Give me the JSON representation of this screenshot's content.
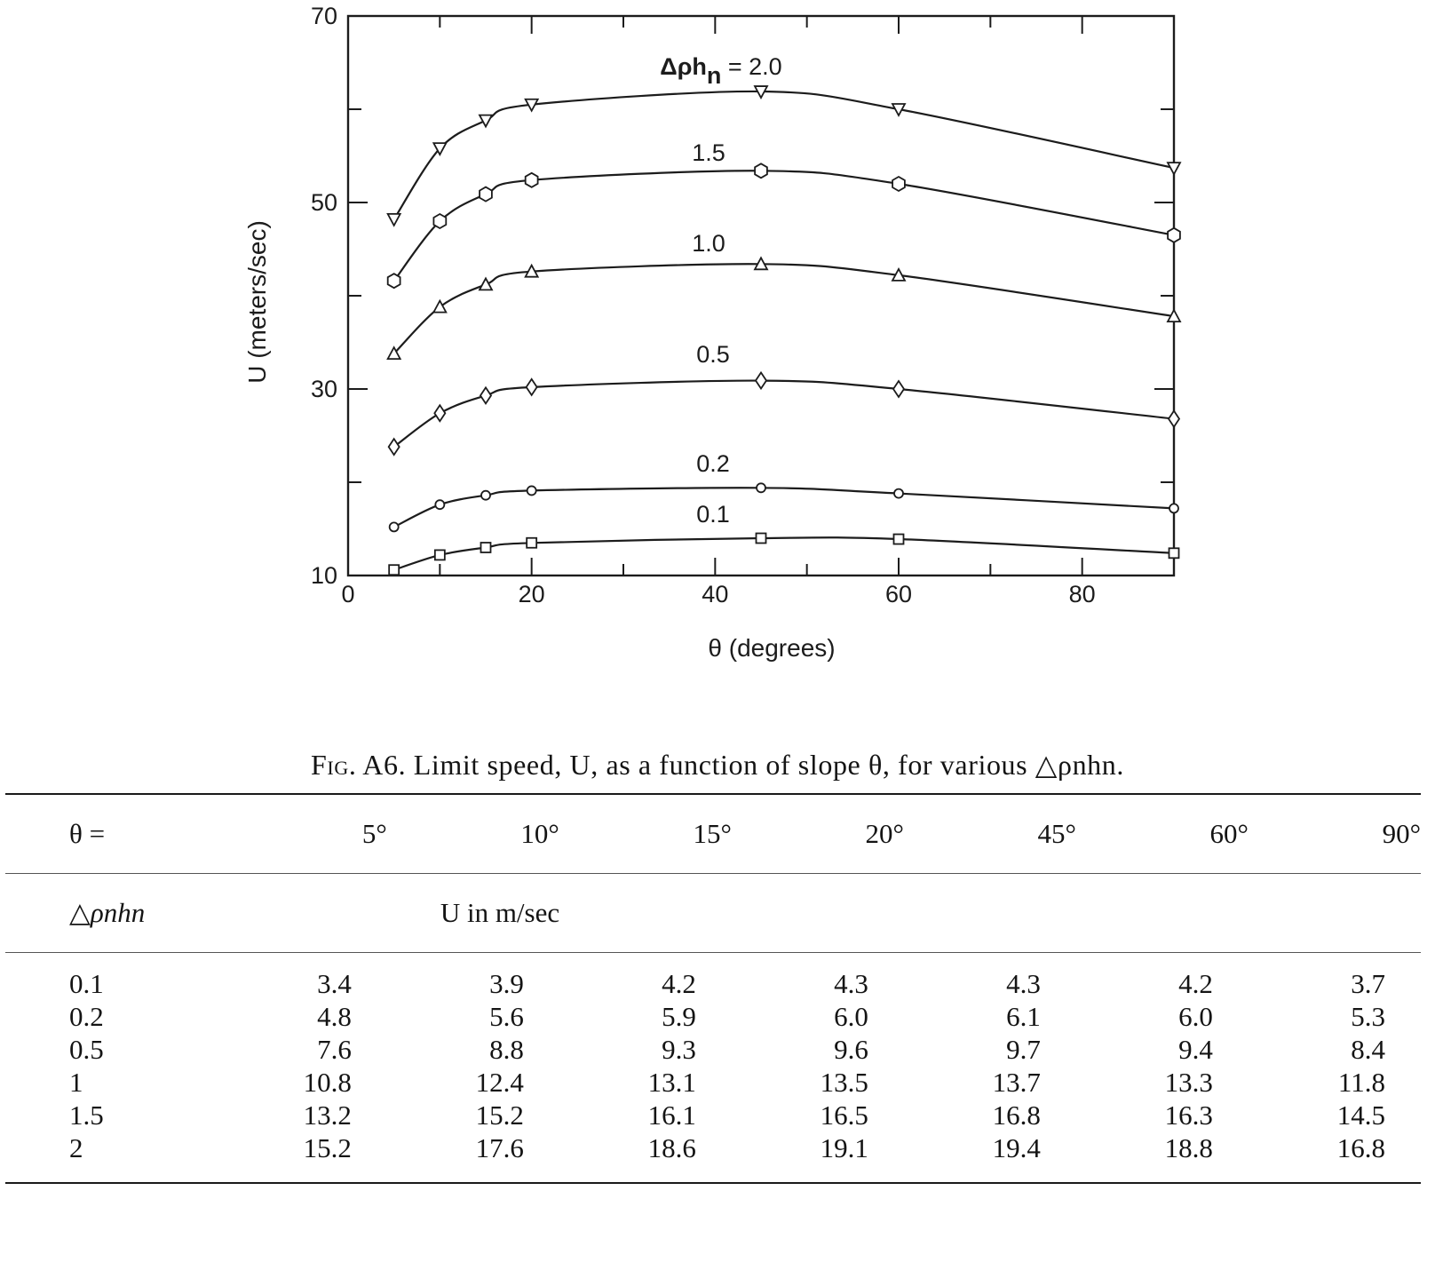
{
  "chart_data": {
    "type": "line",
    "xlabel": "θ (degrees)",
    "ylabel": "U (meters/sec)",
    "xlim": [
      0,
      90
    ],
    "ylim": [
      10,
      70
    ],
    "x_ticks": [
      0,
      20,
      40,
      60,
      80
    ],
    "y_ticks": [
      10,
      30,
      50,
      70
    ],
    "grid": false,
    "legend_title": "Δρhn",
    "x": [
      5,
      10,
      15,
      20,
      45,
      60,
      90
    ],
    "series": [
      {
        "name": "2.0",
        "label": "Δρhn  = 2.0",
        "marker": "triangle-down",
        "values": [
          48.2,
          55.8,
          58.8,
          60.5,
          61.9,
          60.0,
          53.7
        ]
      },
      {
        "name": "1.5",
        "label": "1.5",
        "marker": "hexagon",
        "values": [
          41.6,
          48.0,
          50.9,
          52.4,
          53.4,
          52.0,
          46.5
        ]
      },
      {
        "name": "1.0",
        "label": "1.0",
        "marker": "triangle-up",
        "values": [
          33.8,
          38.8,
          41.2,
          42.6,
          43.4,
          42.2,
          37.8
        ]
      },
      {
        "name": "0.5",
        "label": "0.5",
        "marker": "diamond",
        "values": [
          23.8,
          27.4,
          29.3,
          30.2,
          30.9,
          30.0,
          26.8
        ]
      },
      {
        "name": "0.2",
        "label": "0.2",
        "marker": "circle",
        "values": [
          15.2,
          17.6,
          18.6,
          19.1,
          19.4,
          18.8,
          17.2
        ]
      },
      {
        "name": "0.1",
        "label": "0.1",
        "marker": "square",
        "values": [
          10.6,
          12.2,
          13.0,
          13.5,
          14.0,
          13.9,
          12.4
        ]
      }
    ]
  },
  "caption": {
    "fig": "Fig. A6.",
    "text": " Limit speed, U, as a function of slope θ, for various △ρnhn."
  },
  "table": {
    "theta_label": "θ =",
    "columns": [
      "5°",
      "10°",
      "15°",
      "20°",
      "45°",
      "60°",
      "90°"
    ],
    "row_header": "△ρnhn",
    "unit_label": "U in m/sec",
    "rows": [
      {
        "label": "0.1",
        "values": [
          "3.4",
          "3.9",
          "4.2",
          "4.3",
          "4.3",
          "4.2",
          "3.7"
        ]
      },
      {
        "label": "0.2",
        "values": [
          "4.8",
          "5.6",
          "5.9",
          "6.0",
          "6.1",
          "6.0",
          "5.3"
        ]
      },
      {
        "label": "0.5",
        "values": [
          "7.6",
          "8.8",
          "9.3",
          "9.6",
          "9.7",
          "9.4",
          "8.4"
        ]
      },
      {
        "label": "1",
        "values": [
          "10.8",
          "12.4",
          "13.1",
          "13.5",
          "13.7",
          "13.3",
          "11.8"
        ]
      },
      {
        "label": "1.5",
        "values": [
          "13.2",
          "15.2",
          "16.1",
          "16.5",
          "16.8",
          "16.3",
          "14.5"
        ]
      },
      {
        "label": "2",
        "values": [
          "15.2",
          "17.6",
          "18.6",
          "19.1",
          "19.4",
          "18.8",
          "16.8"
        ]
      }
    ]
  }
}
